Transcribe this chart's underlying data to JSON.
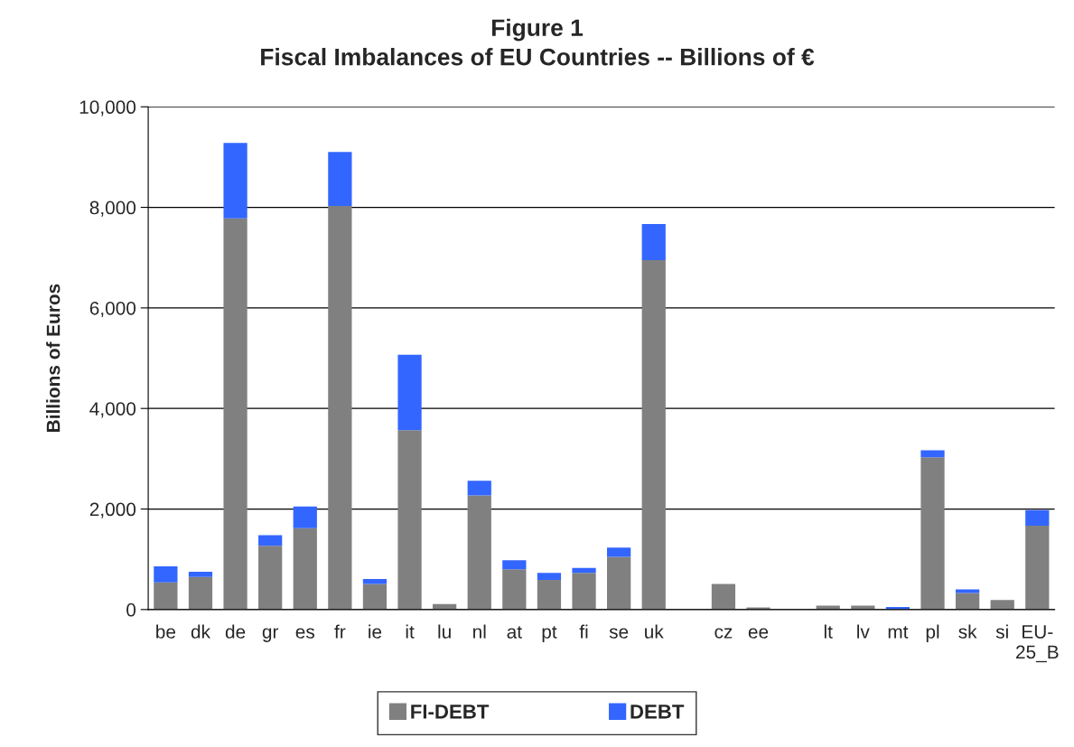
{
  "chart_data": {
    "type": "bar",
    "title": "Figure 1\nFiscal Imbalances of EU Countries -- Billions of €",
    "ylabel": "Billions of Euros",
    "categories": [
      "be",
      "dk",
      "de",
      "gr",
      "es",
      "fr",
      "ie",
      "it",
      "lu",
      "nl",
      "at",
      "pt",
      "fi",
      "se",
      "uk",
      null,
      "cz",
      "ee",
      null,
      "lt",
      "lv",
      "mt",
      "pl",
      "sk",
      "si",
      "EU-\n25_B"
    ],
    "series": [
      {
        "name": "FI-DEBT",
        "color": "#808080",
        "values": [
          540,
          650,
          7780,
          1270,
          1620,
          8030,
          510,
          3570,
          110,
          2270,
          800,
          590,
          730,
          1050,
          6950,
          null,
          510,
          40,
          null,
          80,
          80,
          null,
          3030,
          330,
          190,
          1670
        ]
      },
      {
        "name": "DEBT",
        "color": "#3366ff",
        "values": [
          320,
          100,
          1500,
          210,
          430,
          1070,
          100,
          1500,
          null,
          290,
          180,
          140,
          100,
          180,
          720,
          null,
          null,
          null,
          null,
          null,
          null,
          50,
          140,
          70,
          null,
          310
        ]
      }
    ],
    "stacked": true,
    "ylim": [
      0,
      10000
    ],
    "yticks": [
      {
        "value": 0,
        "label": "0"
      },
      {
        "value": 2000,
        "label": "2,000"
      },
      {
        "value": 4000,
        "label": "4,000"
      },
      {
        "value": 6000,
        "label": "6,000"
      },
      {
        "value": 8000,
        "label": "8,000"
      },
      {
        "value": 10000,
        "label": "10,000"
      }
    ],
    "grid": "y",
    "legend": "bottom"
  }
}
